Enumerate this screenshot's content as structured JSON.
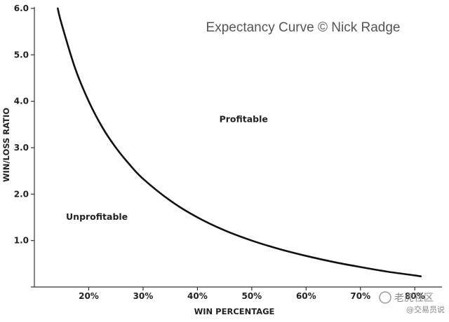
{
  "chart_data": {
    "type": "line",
    "title": "Expectancy Curve © Nick Radge",
    "xlabel": "WIN PERCENTAGE",
    "ylabel": "WIN/LOSS RATIO",
    "x_ticks": [
      "20%",
      "30%",
      "40%",
      "50%",
      "60%",
      "70%",
      "80%"
    ],
    "y_ticks": [
      "1.0",
      "2.0",
      "3.0",
      "4.0",
      "5.0",
      "6.0"
    ],
    "x_unit": "percent",
    "xlim": [
      10,
      85
    ],
    "ylim": [
      0,
      6
    ],
    "grid": false,
    "legend": "none",
    "series": [
      {
        "x": [
          14.3,
          15,
          17.5,
          20,
          22.5,
          25,
          27.5,
          30,
          35,
          40,
          45,
          50,
          55,
          60,
          65,
          70,
          75,
          80,
          81.1
        ],
        "y": [
          6.0,
          5.67,
          4.71,
          4.0,
          3.44,
          3.0,
          2.64,
          2.33,
          1.86,
          1.5,
          1.22,
          1.0,
          0.82,
          0.67,
          0.54,
          0.43,
          0.33,
          0.25,
          0.23
        ],
        "color": "#111111"
      }
    ],
    "annotations": [
      {
        "text": "Profitable",
        "x": 48.5,
        "y": 3.55
      },
      {
        "text": "Unprofitable",
        "x": 21.5,
        "y": 1.45
      }
    ]
  },
  "watermark": {
    "name": "老虎社区",
    "handle": "@交易员说"
  }
}
